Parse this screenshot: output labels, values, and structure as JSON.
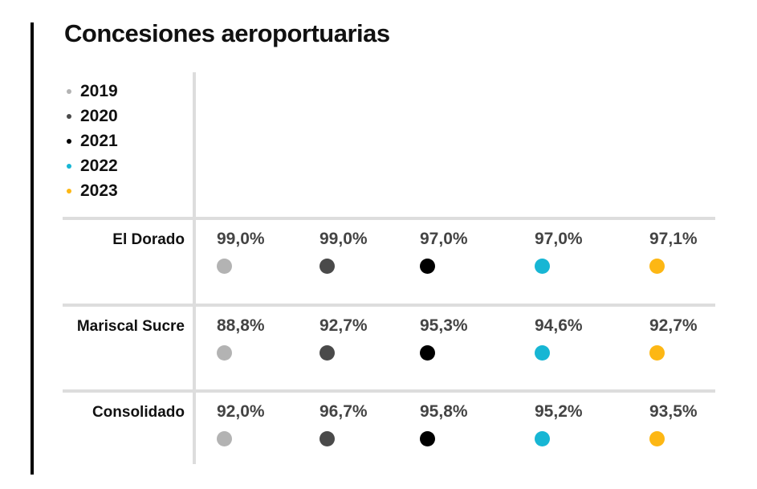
{
  "chart_data": {
    "type": "dot-table",
    "title": "Concesiones aeroportuarias",
    "categories": [
      "El Dorado",
      "Mariscal Sucre",
      "Consolidado"
    ],
    "series": [
      {
        "name": "2019",
        "color": "#b3b3b3",
        "values": [
          99.0,
          88.8,
          92.0
        ],
        "value_labels": [
          "99,0%",
          "88,8%",
          "92,0%"
        ]
      },
      {
        "name": "2020",
        "color": "#4a4a4a",
        "values": [
          99.0,
          92.7,
          96.7
        ],
        "value_labels": [
          "99,0%",
          "92,7%",
          "96,7%"
        ]
      },
      {
        "name": "2021",
        "color": "#000000",
        "values": [
          97.0,
          95.3,
          95.8
        ],
        "value_labels": [
          "97,0%",
          "95,3%",
          "95,8%"
        ]
      },
      {
        "name": "2022",
        "color": "#17b6d4",
        "values": [
          97.0,
          94.6,
          95.2
        ],
        "value_labels": [
          "97,0%",
          "94,6%",
          "95,2%"
        ]
      },
      {
        "name": "2023",
        "color": "#fdb714",
        "values": [
          97.1,
          92.7,
          93.5
        ],
        "value_labels": [
          "97,1%",
          "92,7%",
          "93,5%"
        ]
      }
    ]
  }
}
